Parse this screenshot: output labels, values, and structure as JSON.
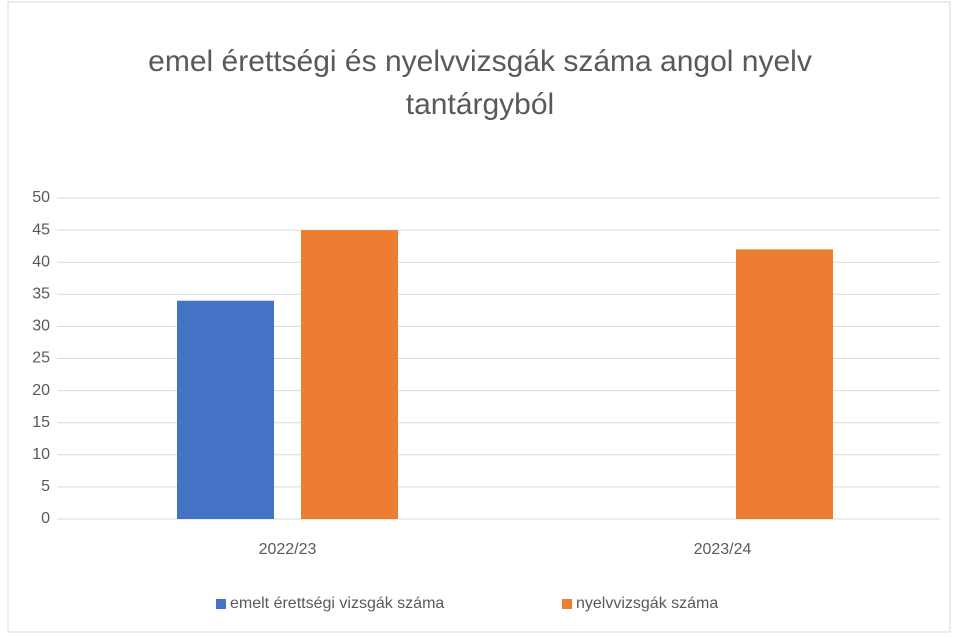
{
  "chart_data": {
    "type": "bar",
    "title": "emel érettségi és nyelvvizsgák száma angol nyelv tantárgyból",
    "categories": [
      "2022/23",
      "2023/24"
    ],
    "series": [
      {
        "name": "emelt érettségi vizsgák száma",
        "color": "#4472c4",
        "values": [
          34,
          null
        ]
      },
      {
        "name": "nyelvvizsgák száma",
        "color": "#ed7d31",
        "values": [
          45,
          42
        ]
      }
    ],
    "ylim": [
      0,
      50
    ],
    "yticks": [
      0,
      5,
      10,
      15,
      20,
      25,
      30,
      35,
      40,
      45,
      50
    ],
    "grid": true,
    "legend": "bottom"
  }
}
